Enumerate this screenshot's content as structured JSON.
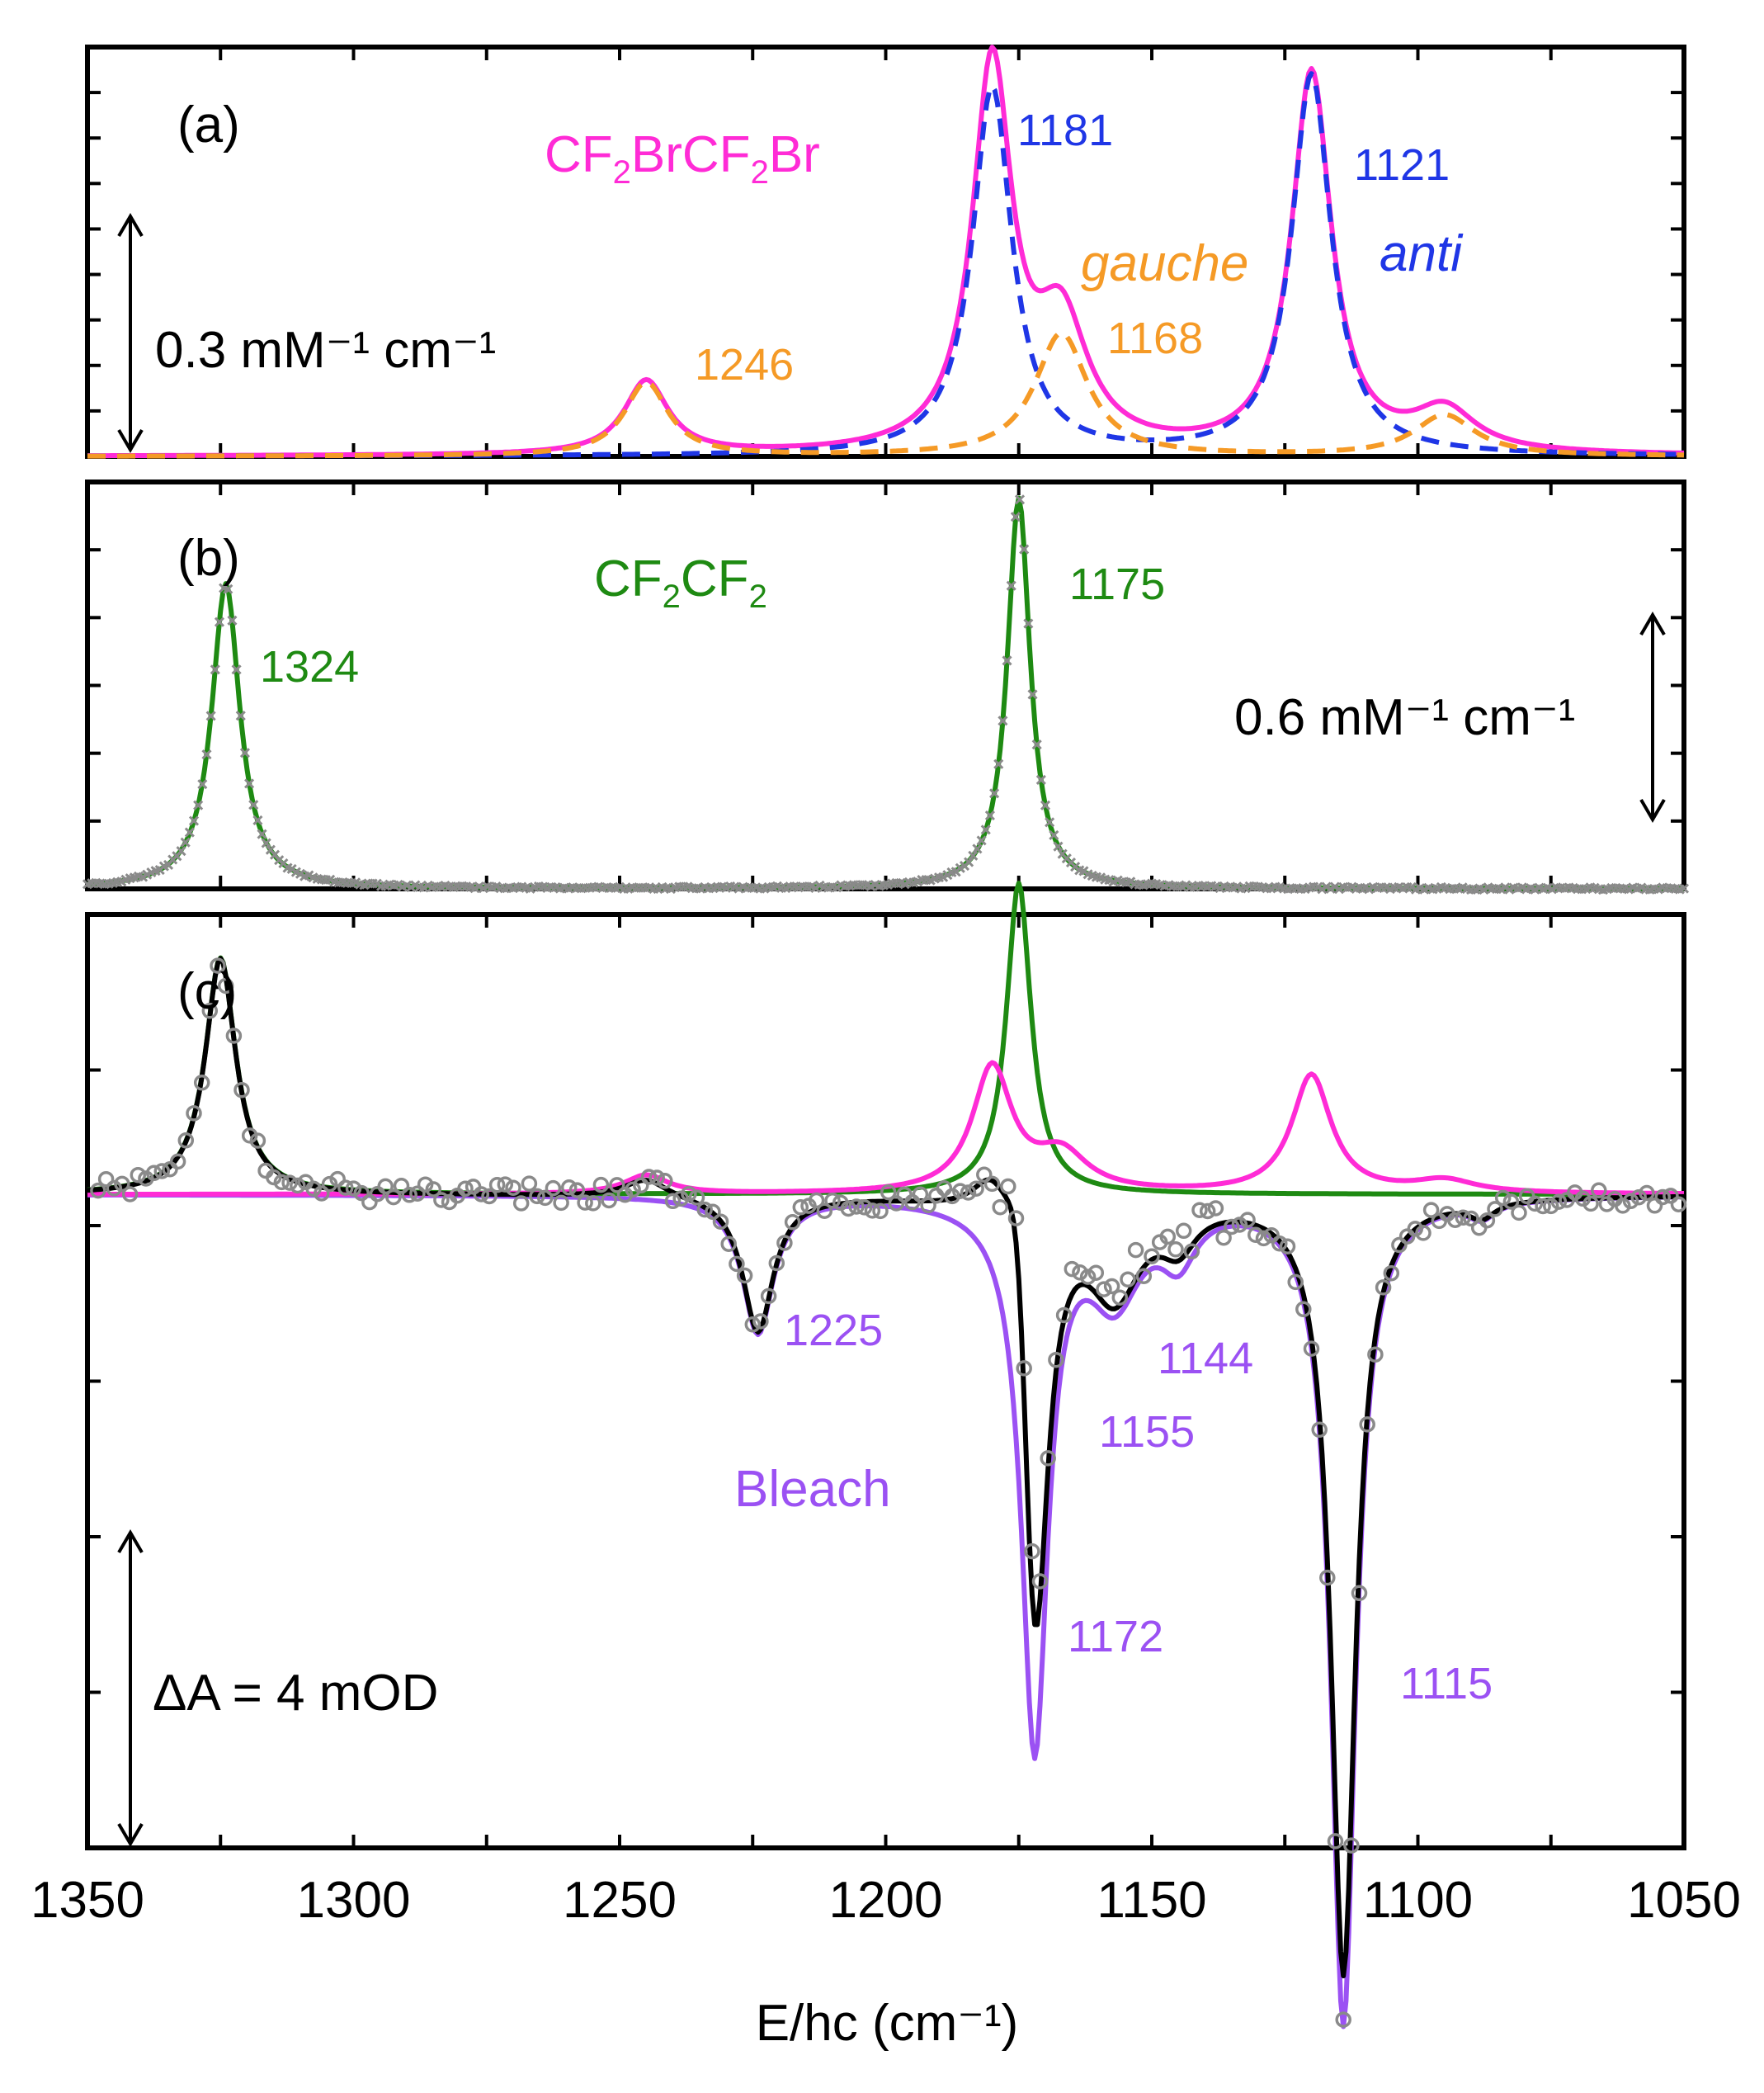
{
  "colors": {
    "magenta": "#ff2bd6",
    "blue": "#1f36e6",
    "orange": "#f59a26",
    "green": "#1e8a12",
    "gray": "#8a8a8a",
    "purple": "#9b51f3",
    "black": "#000000"
  },
  "chart_data": {
    "type": "line",
    "xlabel": "E/hc (cm⁻¹)",
    "x_range": [
      1350,
      1050
    ],
    "x_ticks": [
      "1350",
      "1300",
      "1250",
      "1200",
      "1150",
      "1100",
      "1050"
    ],
    "panels": [
      {
        "id": "a",
        "panel_label": "(a)",
        "ylim": [
          0,
          1.0
        ],
        "y_tick_count": 8,
        "species_label": {
          "main": "CF",
          "sub1": "2",
          "mid": "BrCF",
          "sub2": "2",
          "end": "Br"
        },
        "scale_bar": "0.3 mM⁻¹ cm⁻¹",
        "conformer_labels": {
          "gauche": "gauche",
          "anti": "anti"
        },
        "peak_labels": {
          "p1246": "1246",
          "p1181": "1181",
          "p1168": "1168",
          "p1121": "1121"
        },
        "series": [
          {
            "name": "CF2BrCF2Br total",
            "style": "solid",
            "color_key": "magenta",
            "peaks": [
              [
                1245,
                0.18,
                5
              ],
              [
                1180,
                0.94,
                4.5
              ],
              [
                1167,
                0.3,
                6
              ],
              [
                1120,
                0.93,
                4.5
              ],
              [
                1095,
                0.1,
                7
              ]
            ]
          },
          {
            "name": "anti",
            "style": "dashed",
            "color_key": "blue",
            "peaks": [
              [
                1180,
                0.9,
                4.5
              ],
              [
                1120,
                0.93,
                4.5
              ]
            ]
          },
          {
            "name": "gauche",
            "style": "dashed",
            "color_key": "orange",
            "peaks": [
              [
                1245,
                0.18,
                5
              ],
              [
                1167,
                0.3,
                6
              ],
              [
                1095,
                0.1,
                7
              ]
            ]
          }
        ]
      },
      {
        "id": "b",
        "panel_label": "(b)",
        "ylim": [
          0,
          1.0
        ],
        "y_tick_count": 5,
        "species_label": {
          "main": "CF",
          "sub1": "2",
          "mid": "CF",
          "sub2": "2",
          "end": ""
        },
        "scale_bar": "0.6 mM⁻¹ cm⁻¹",
        "peak_labels": {
          "p1324": "1324",
          "p1175": "1175"
        },
        "series": [
          {
            "name": "CF2CF2 fit",
            "style": "solid",
            "color_key": "green",
            "peaks": [
              [
                1324,
                0.75,
                3.2
              ],
              [
                1175,
                0.96,
                2.6
              ]
            ]
          },
          {
            "name": "CF2CF2 experiment",
            "style": "markers-x",
            "color_key": "gray",
            "peaks": [
              [
                1324,
                0.75,
                3.2
              ],
              [
                1175,
                0.96,
                2.6
              ]
            ]
          }
        ]
      },
      {
        "id": "c",
        "panel_label": "(c)",
        "ylim": [
          -10.5,
          4.5
        ],
        "y_tick_count": 5,
        "scale_bar": "ΔA = 4 mOD",
        "bleach_label": "Bleach",
        "peak_labels": {
          "p1225": "1225",
          "p1144": "1144",
          "p1155": "1155",
          "p1172": "1172",
          "p1115": "1115"
        },
        "series": [
          {
            "name": "Bleach",
            "style": "solid",
            "color_key": "purple",
            "peaks": [
              [
                1224,
                -2.2,
                3.5
              ],
              [
                1172,
                -8.8,
                3
              ],
              [
                1157,
                -1.5,
                6
              ],
              [
                1145,
                -0.8,
                4
              ],
              [
                1114,
                -13.3,
                2.8
              ],
              [
                1088,
                -0.25,
                3
              ]
            ]
          },
          {
            "name": "CF2CF2 product",
            "style": "solid",
            "color_key": "green",
            "peaks": [
              [
                1325,
                3.8,
                3.5
              ],
              [
                1175,
                5.0,
                2.8
              ]
            ]
          },
          {
            "name": "CF2BrCF2Br scaled",
            "style": "solid",
            "color_key": "magenta",
            "peaks": [
              [
                1245,
                0.3,
                5
              ],
              [
                1180,
                2.0,
                4.5
              ],
              [
                1167,
                0.6,
                6
              ],
              [
                1120,
                1.9,
                4.5
              ],
              [
                1095,
                0.2,
                7
              ]
            ]
          },
          {
            "name": "Total fit",
            "style": "solid",
            "color_key": "black",
            "peaks": [
              [
                1325,
                3.8,
                3.5
              ],
              [
                1245,
                0.3,
                5
              ],
              [
                1224,
                -2.2,
                3.5
              ],
              [
                1180,
                0.75,
                4.5
              ],
              [
                1175,
                2.5,
                2.8
              ],
              [
                1172,
                -8.0,
                3
              ],
              [
                1157,
                -1.5,
                6
              ],
              [
                1145,
                -0.6,
                4
              ],
              [
                1114,
                -12.5,
                2.8
              ],
              [
                1088,
                -0.25,
                3
              ]
            ]
          },
          {
            "name": "Experiment",
            "style": "markers-o",
            "color_key": "gray",
            "peaks": [
              [
                1325,
                3.8,
                3.5
              ],
              [
                1245,
                0.3,
                5
              ],
              [
                1224,
                -2.2,
                3.5
              ],
              [
                1180,
                0.75,
                4.5
              ],
              [
                1175,
                2.5,
                2.8
              ],
              [
                1172,
                -7.6,
                3
              ],
              [
                1157,
                -1.3,
                6
              ],
              [
                1145,
                -0.5,
                4
              ],
              [
                1114,
                -13.3,
                2.8
              ],
              [
                1088,
                -0.25,
                3
              ]
            ]
          }
        ]
      }
    ]
  }
}
